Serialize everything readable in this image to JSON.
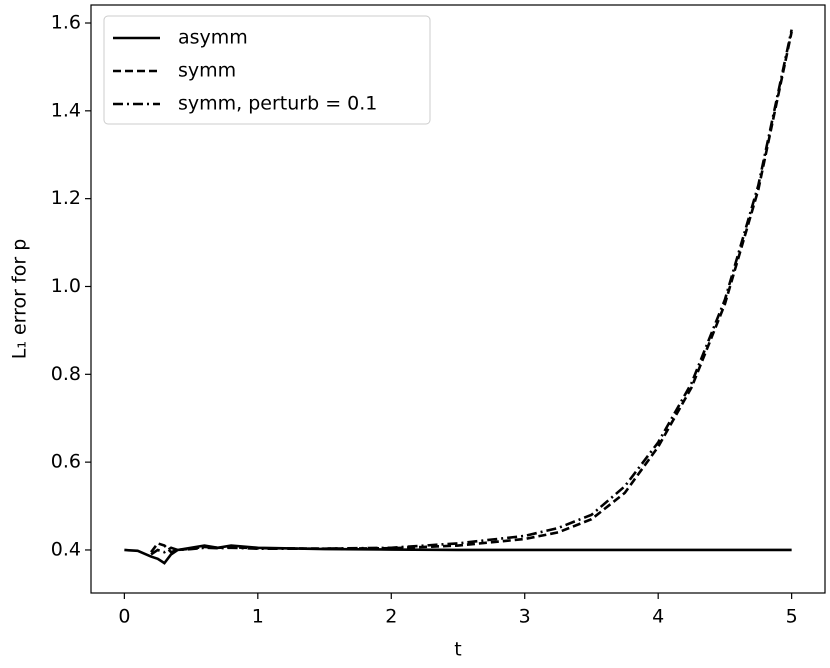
{
  "chart_data": {
    "type": "line",
    "xlabel": "t",
    "ylabel": "L₁ error for p",
    "x": [
      0,
      0.1,
      0.2,
      0.25,
      0.3,
      0.35,
      0.4,
      0.5,
      0.6,
      0.7,
      0.8,
      1,
      1.5,
      2,
      2.5,
      3,
      3.25,
      3.5,
      3.75,
      4,
      4.25,
      4.5,
      4.75,
      5
    ],
    "series": [
      {
        "name": "asymm",
        "color": "#000000",
        "dash": "none",
        "values": [
          0.4,
          0.398,
          0.385,
          0.38,
          0.37,
          0.39,
          0.4,
          0.405,
          0.41,
          0.405,
          0.41,
          0.405,
          0.402,
          0.401,
          0.4,
          0.4,
          0.4,
          0.4,
          0.4,
          0.4,
          0.4,
          0.4,
          0.4,
          0.4
        ]
      },
      {
        "name": "symm",
        "color": "#000000",
        "dash": "8,4",
        "values": [
          null,
          null,
          0.395,
          0.415,
          0.41,
          0.395,
          0.4,
          0.403,
          0.407,
          0.405,
          0.406,
          0.404,
          0.403,
          0.404,
          0.41,
          0.425,
          0.44,
          0.47,
          0.53,
          0.635,
          0.77,
          0.96,
          1.22,
          1.58
        ]
      },
      {
        "name": "symm, perturb = 0.1",
        "color": "#000000",
        "dash": "10,4,2,4",
        "values": [
          null,
          null,
          0.39,
          0.4,
          0.395,
          0.405,
          0.4,
          0.402,
          0.405,
          0.404,
          0.405,
          0.403,
          0.403,
          0.405,
          0.415,
          0.432,
          0.45,
          0.48,
          0.545,
          0.645,
          0.78,
          0.97,
          1.23,
          1.585
        ]
      }
    ],
    "xlim": [
      -0.25,
      5.25
    ],
    "ylim": [
      0.302,
      1.641
    ],
    "xticks": [
      0,
      1,
      2,
      3,
      4,
      5
    ],
    "yticks": [
      0.4,
      0.6,
      0.8,
      {
        "value": 1,
        "label": "1.0"
      },
      1.2,
      1.4,
      1.6
    ],
    "grid": false,
    "legend": "upper left"
  }
}
